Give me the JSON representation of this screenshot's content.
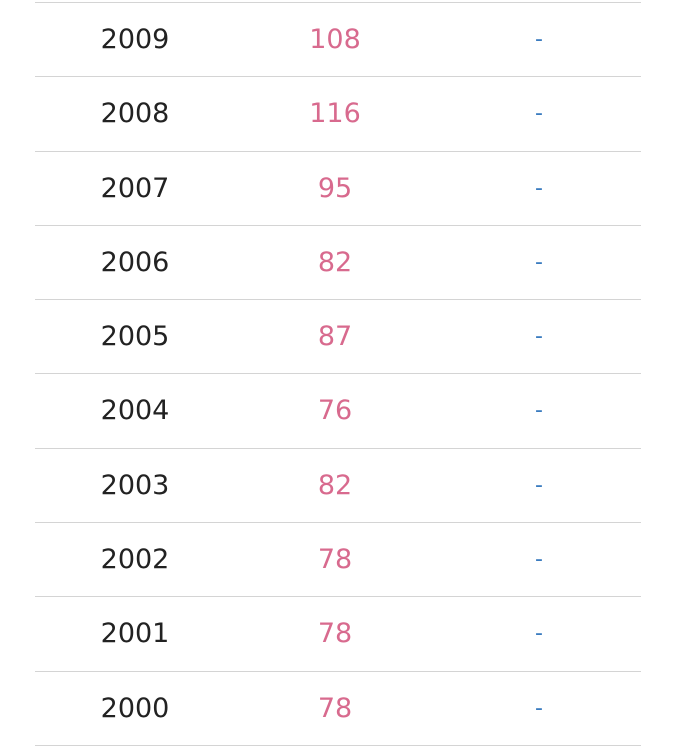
{
  "table": {
    "rows": [
      {
        "year": "2009",
        "value": "108",
        "extra": "-"
      },
      {
        "year": "2008",
        "value": "116",
        "extra": "-"
      },
      {
        "year": "2007",
        "value": "95",
        "extra": "-"
      },
      {
        "year": "2006",
        "value": "82",
        "extra": "-"
      },
      {
        "year": "2005",
        "value": "87",
        "extra": "-"
      },
      {
        "year": "2004",
        "value": "76",
        "extra": "-"
      },
      {
        "year": "2003",
        "value": "82",
        "extra": "-"
      },
      {
        "year": "2002",
        "value": "78",
        "extra": "-"
      },
      {
        "year": "2001",
        "value": "78",
        "extra": "-"
      },
      {
        "year": "2000",
        "value": "78",
        "extra": "-"
      }
    ]
  },
  "colors": {
    "year": "#222222",
    "value": "#d86a8e",
    "extra": "#3a7bbf",
    "divider": "#d4d4d4"
  }
}
